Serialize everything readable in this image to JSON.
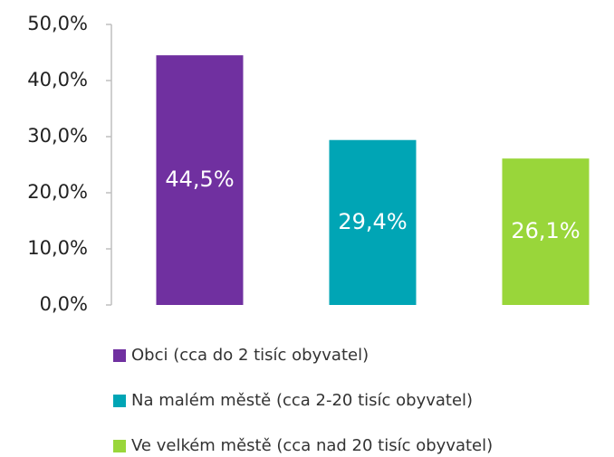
{
  "chart_data": {
    "type": "bar",
    "categories": [
      null
    ],
    "series": [
      {
        "name": "Obci (cca do 2 tisíc obyvatel)",
        "color": "#7030a0",
        "values": [
          44.5
        ],
        "value_labels": [
          "44,5%"
        ]
      },
      {
        "name": "Na malém městě (cca 2-20 tisíc obyvatel)",
        "color": "#00a5b5",
        "values": [
          29.4
        ],
        "value_labels": [
          "29,4%"
        ]
      },
      {
        "name": "Ve velkém městě (cca nad 20 tisíc obyvatel)",
        "color": "#99d63a",
        "values": [
          26.1
        ],
        "value_labels": [
          "26,1%"
        ]
      }
    ],
    "ylim": [
      0,
      50
    ],
    "yticks": [
      {
        "value": 0,
        "label": "0,0%"
      },
      {
        "value": 10,
        "label": "10,0%"
      },
      {
        "value": 20,
        "label": "20,0%"
      },
      {
        "value": 30,
        "label": "30,0%"
      },
      {
        "value": 40,
        "label": "40,0%"
      },
      {
        "value": 50,
        "label": "50,0%"
      }
    ],
    "grid": false,
    "legend": "bottom"
  }
}
